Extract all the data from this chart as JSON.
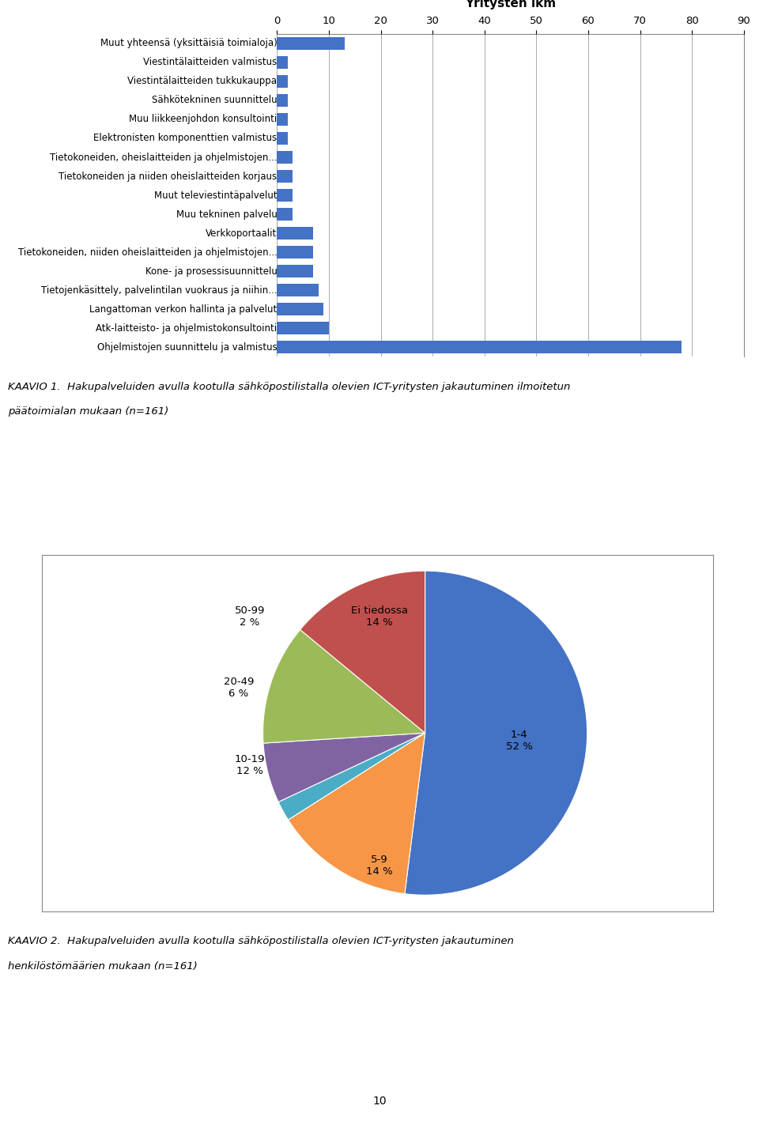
{
  "bar_categories": [
    "Ohjelmistojen suunnittelu ja valmistus",
    "Atk-laitteisto- ja ohjelmistokonsultointi",
    "Langattoman verkon hallinta ja palvelut",
    "Tietojenkäsittely, palvelintilan vuokraus ja niihin...",
    "Kone- ja prosessisuunnittelu",
    "Tietokoneiden, niiden oheislaitteiden ja ohjelmistojen...",
    "Verkkoportaalit",
    "Muu tekninen palvelu",
    "Muut televiestintäpalvelut",
    "Tietokoneiden ja niiden oheislaitteiden korjaus",
    "Tietokoneiden, oheislaitteiden ja ohjelmistojen...",
    "Elektronisten komponenttien valmistus",
    "Muu liikkeenjohdon konsultointi",
    "Sähkötekninen suunnittelu",
    "Viestintälaitteiden tukkukauppa",
    "Viestintälaitteiden valmistus",
    "Muut yhteensä (yksittäisiä toimialoja)"
  ],
  "bar_values": [
    78,
    10,
    9,
    8,
    7,
    7,
    7,
    3,
    3,
    3,
    3,
    2,
    2,
    2,
    2,
    2,
    13
  ],
  "bar_color": "#4472C4",
  "bar_xlabel": "Yritysten lkm",
  "bar_xlim": [
    0,
    90
  ],
  "bar_xticks": [
    0,
    10,
    20,
    30,
    40,
    50,
    60,
    70,
    80,
    90
  ],
  "kaavio1_line1": "KAAVIO 1.  Hakupalveluiden avulla kootulla sähköpostilistalla olevien ICT-yritysten jakautuminen ilmoitetun",
  "kaavio1_line2": "päätoimialan mukaan (n=161)",
  "pie_wedge_sizes": [
    52,
    14,
    2,
    6,
    12,
    14
  ],
  "pie_wedge_colors": [
    "#4472C4",
    "#F79646",
    "#4BACC6",
    "#8064A2",
    "#9BBB59",
    "#C0504D"
  ],
  "pie_wedge_labels": [
    "1-4\n52 %",
    "Ei tiedossa\n14 %",
    "50-99\n2 %",
    "20-49\n6 %",
    "10-19\n12 %",
    "5-9\n14 %"
  ],
  "kaavio2_line1": "KAAVIO 2.  Hakupalveluiden avulla kootulla sähköpostilistalla olevien ICT-yritysten jakautuminen",
  "kaavio2_line2": "henkilöstömäärien mukaan (n=161)",
  "page_number": "10"
}
